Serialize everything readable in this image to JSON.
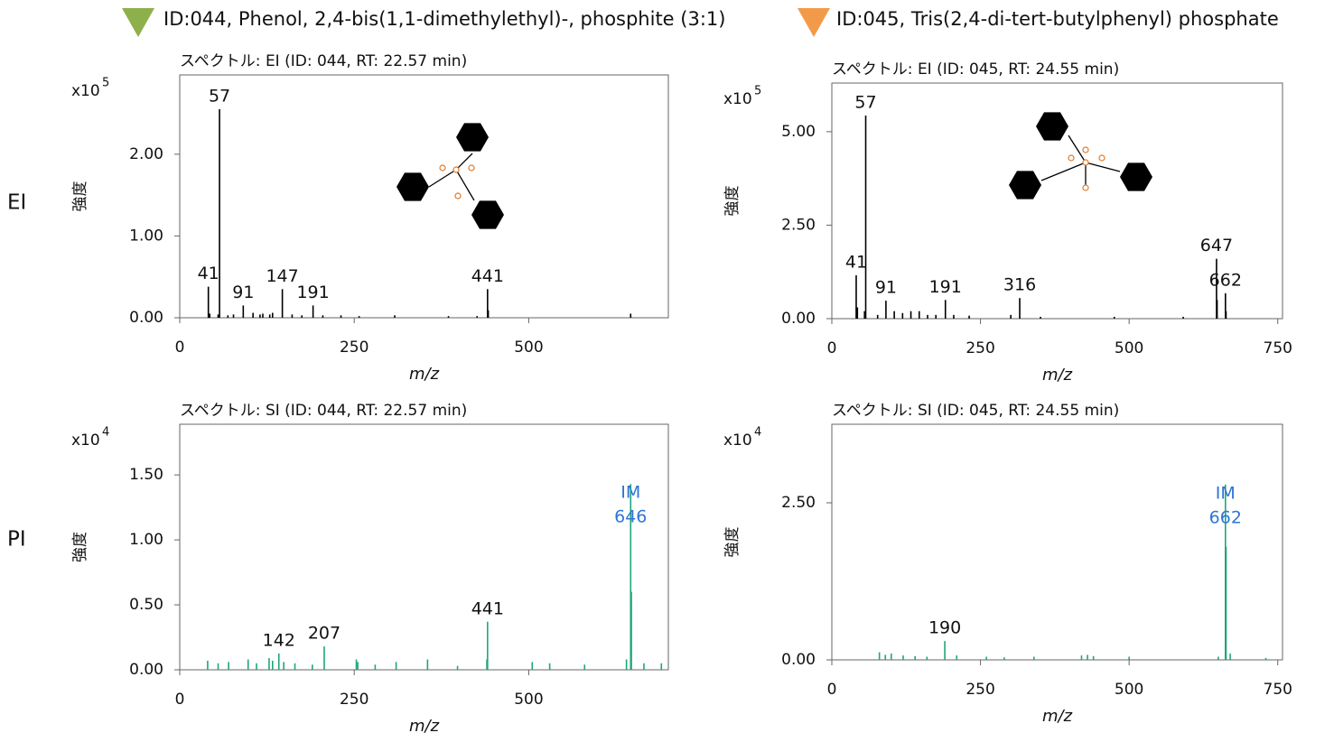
{
  "headers": [
    {
      "text": "ID:044, Phenol, 2,4-bis(1,1-dimethylethyl)-, phosphite (3:1)",
      "color": "#8db04a"
    },
    {
      "text": "ID:045, Tris(2,4-di-tert-butylphenyl) phosphate",
      "color": "#f39a4a"
    }
  ],
  "row_labels": [
    "EI",
    "PI"
  ],
  "chart_data": [
    {
      "type": "bar",
      "title": "スペクトル: EI (ID: 044, RT: 22.57 min)",
      "x_label": "m/z",
      "y_label": "強度",
      "y_scale_label": "x10",
      "y_scale_exponent": "5",
      "color": "#000000",
      "xlim": [
        0,
        700
      ],
      "xticks": [
        0,
        250,
        500
      ],
      "ylim": [
        0,
        2.97
      ],
      "yticks": [
        {
          "value": 0,
          "label": "0.00"
        },
        {
          "value": 1,
          "label": "1.00"
        },
        {
          "value": 2,
          "label": "2.00"
        }
      ],
      "x": [
        41,
        43,
        55,
        57,
        69,
        77,
        91,
        105,
        115,
        119,
        129,
        133,
        147,
        161,
        175,
        191,
        205,
        231,
        257,
        308,
        385,
        426,
        441,
        442,
        646
      ],
      "values": [
        0.38,
        0.05,
        0.04,
        2.55,
        0.03,
        0.04,
        0.15,
        0.06,
        0.04,
        0.05,
        0.04,
        0.06,
        0.35,
        0.04,
        0.03,
        0.15,
        0.03,
        0.03,
        0.02,
        0.03,
        0.02,
        0.02,
        0.35,
        0.09,
        0.05
      ],
      "peak_labels": [
        41,
        57,
        91,
        147,
        191,
        441
      ]
    },
    {
      "type": "bar",
      "title": "スペクトル: EI (ID: 045, RT: 24.55 min)",
      "x_label": "m/z",
      "y_label": "強度",
      "y_scale_label": "x10",
      "y_scale_exponent": "5",
      "color": "#000000",
      "xlim": [
        0,
        758
      ],
      "xticks": [
        0,
        250,
        500,
        750
      ],
      "ylim": [
        0,
        6.3
      ],
      "yticks": [
        {
          "value": 0,
          "label": "0.00"
        },
        {
          "value": 2.5,
          "label": "2.50"
        },
        {
          "value": 5,
          "label": "5.00"
        }
      ],
      "x": [
        41,
        43,
        55,
        57,
        77,
        91,
        105,
        119,
        133,
        147,
        161,
        175,
        191,
        205,
        231,
        301,
        316,
        351,
        475,
        591,
        647,
        648,
        662,
        663
      ],
      "values": [
        1.16,
        0.3,
        0.2,
        5.43,
        0.1,
        0.48,
        0.2,
        0.15,
        0.2,
        0.2,
        0.1,
        0.1,
        0.5,
        0.1,
        0.08,
        0.1,
        0.55,
        0.05,
        0.05,
        0.05,
        1.6,
        0.5,
        0.68,
        0.2
      ],
      "peak_labels": [
        41,
        57,
        91,
        191,
        316,
        647,
        662
      ]
    },
    {
      "type": "bar",
      "title": "スペクトル: SI (ID: 044, RT: 22.57 min)",
      "x_label": "m/z",
      "y_label": "強度",
      "y_scale_label": "x10",
      "y_scale_exponent": "4",
      "color": "#1fa67a",
      "xlim": [
        0,
        700
      ],
      "xticks": [
        0,
        250,
        500
      ],
      "ylim": [
        0,
        1.89
      ],
      "yticks": [
        {
          "value": 0,
          "label": "0.00"
        },
        {
          "value": 0.5,
          "label": "0.50"
        },
        {
          "value": 1,
          "label": "1.00"
        },
        {
          "value": 1.5,
          "label": "1.50"
        }
      ],
      "x": [
        40,
        55,
        70,
        98,
        110,
        128,
        133,
        142,
        149,
        165,
        190,
        207,
        253,
        255,
        280,
        310,
        355,
        398,
        440,
        441,
        505,
        530,
        580,
        640,
        646,
        647,
        665,
        690
      ],
      "values": [
        0.07,
        0.05,
        0.06,
        0.08,
        0.05,
        0.09,
        0.07,
        0.125,
        0.06,
        0.05,
        0.04,
        0.18,
        0.08,
        0.06,
        0.04,
        0.06,
        0.08,
        0.03,
        0.08,
        0.37,
        0.06,
        0.05,
        0.04,
        0.08,
        1.43,
        0.6,
        0.05,
        0.05
      ],
      "peak_labels": [
        142,
        207,
        441
      ],
      "im_label": "IM",
      "im_peak": 646,
      "im_color": "#2e75d6"
    },
    {
      "type": "bar",
      "title": "スペクトル: SI (ID: 045, RT: 24.55 min)",
      "x_label": "m/z",
      "y_label": "強度",
      "y_scale_label": "x10",
      "y_scale_exponent": "4",
      "color": "#1fa67a",
      "xlim": [
        0,
        758
      ],
      "xticks": [
        0,
        250,
        500,
        750
      ],
      "ylim": [
        0,
        3.75
      ],
      "yticks": [
        {
          "value": 0,
          "label": "0.00"
        },
        {
          "value": 2.5,
          "label": "2.50"
        }
      ],
      "x": [
        80,
        90,
        100,
        120,
        140,
        160,
        190,
        210,
        260,
        290,
        340,
        420,
        430,
        440,
        500,
        650,
        662,
        663,
        670,
        730
      ],
      "values": [
        0.12,
        0.08,
        0.1,
        0.07,
        0.06,
        0.05,
        0.3,
        0.07,
        0.05,
        0.04,
        0.05,
        0.07,
        0.08,
        0.06,
        0.05,
        0.05,
        2.79,
        1.8,
        0.1,
        0.03
      ],
      "peak_labels": [
        190
      ],
      "im_label": "IM",
      "im_peak": 662,
      "im_color": "#2e75d6"
    }
  ]
}
